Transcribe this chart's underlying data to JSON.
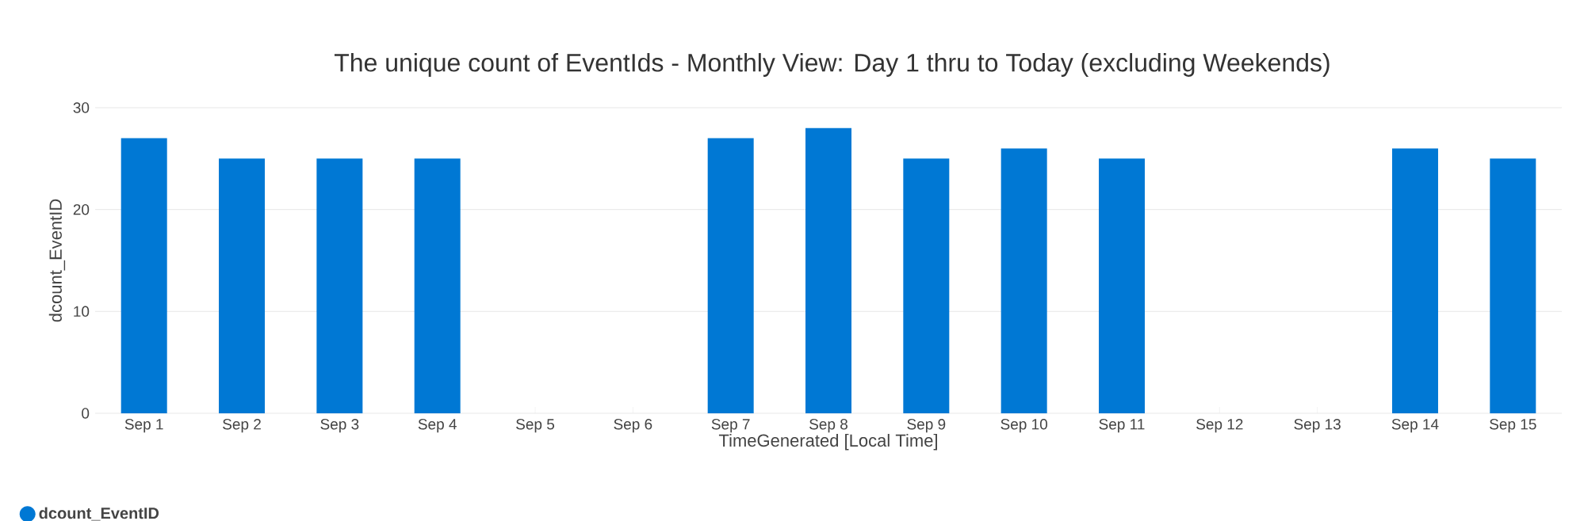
{
  "chart_data": {
    "type": "bar",
    "title": "The unique count of EventIds - Monthly View: Day 1 thru to Today (excluding Weekends)",
    "xlabel": "TimeGenerated [Local Time]",
    "ylabel": "dcount_EventID",
    "categories": [
      "Sep 1",
      "Sep 2",
      "Sep 3",
      "Sep 4",
      "Sep 5",
      "Sep 6",
      "Sep 7",
      "Sep 8",
      "Sep 9",
      "Sep 10",
      "Sep 11",
      "Sep 12",
      "Sep 13",
      "Sep 14",
      "Sep 15"
    ],
    "series": [
      {
        "name": "dcount_EventID",
        "color": "#0078d4",
        "values": [
          27,
          25,
          25,
          25,
          null,
          null,
          27,
          28,
          25,
          26,
          25,
          null,
          null,
          26,
          25
        ]
      }
    ],
    "ylim": [
      0,
      30
    ],
    "yticks": [
      0,
      10,
      20,
      30
    ],
    "grid": "y",
    "legend": "bottom left"
  }
}
